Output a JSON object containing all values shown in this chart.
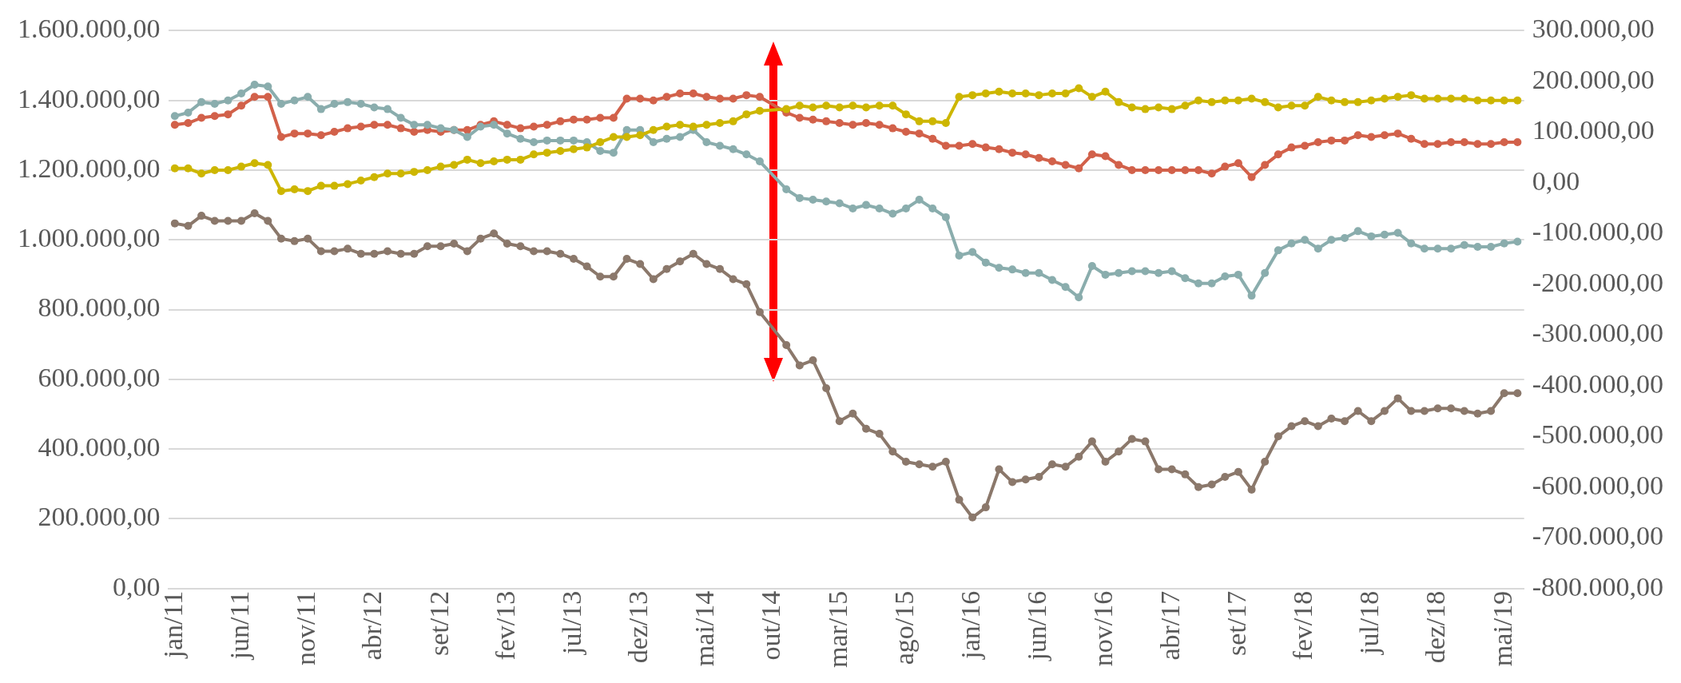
{
  "chart_data": {
    "type": "line",
    "categories": [
      "jan/11",
      null,
      null,
      null,
      null,
      "jun/11",
      null,
      null,
      null,
      null,
      "nov/11",
      null,
      null,
      null,
      null,
      "abr/12",
      null,
      null,
      null,
      null,
      "set/12",
      null,
      null,
      null,
      null,
      "fev/13",
      null,
      null,
      null,
      null,
      "jul/13",
      null,
      null,
      null,
      null,
      "dez/13",
      null,
      null,
      null,
      null,
      "mai/14",
      null,
      null,
      null,
      null,
      "out/14",
      null,
      null,
      null,
      null,
      "mar/15",
      null,
      null,
      null,
      null,
      "ago/15",
      null,
      null,
      null,
      null,
      "jan/16",
      null,
      null,
      null,
      null,
      "jun/16",
      null,
      null,
      null,
      null,
      "nov/16",
      null,
      null,
      null,
      null,
      "abr/17",
      null,
      null,
      null,
      null,
      "set/17",
      null,
      null,
      null,
      null,
      "fev/18",
      null,
      null,
      null,
      null,
      "jul/18",
      null,
      null,
      null,
      null,
      "dez/18",
      null,
      null,
      null,
      null,
      "mai/19",
      null
    ],
    "series": [
      {
        "color": "#d2614a",
        "values": [
          1330000,
          1335000,
          1350000,
          1355000,
          1360000,
          1385000,
          1410000,
          1410000,
          1295000,
          1305000,
          1305000,
          1300000,
          1310000,
          1320000,
          1325000,
          1330000,
          1330000,
          1320000,
          1310000,
          1315000,
          1310000,
          1315000,
          1315000,
          1330000,
          1340000,
          1330000,
          1320000,
          1325000,
          1330000,
          1340000,
          1345000,
          1345000,
          1350000,
          1350000,
          1405000,
          1405000,
          1400000,
          1410000,
          1420000,
          1420000,
          1410000,
          1405000,
          1405000,
          1415000,
          1410000,
          null,
          1365000,
          1350000,
          1345000,
          1340000,
          1335000,
          1330000,
          1335000,
          1330000,
          1320000,
          1310000,
          1305000,
          1290000,
          1270000,
          1270000,
          1275000,
          1265000,
          1260000,
          1250000,
          1245000,
          1235000,
          1225000,
          1215000,
          1205000,
          1245000,
          1240000,
          1215000,
          1200000,
          1200000,
          1200000,
          1200000,
          1200000,
          1200000,
          1190000,
          1210000,
          1220000,
          1180000,
          1215000,
          1245000,
          1265000,
          1270000,
          1280000,
          1285000,
          1285000,
          1300000,
          1295000,
          1300000,
          1305000,
          1290000,
          1275000,
          1275000,
          1280000,
          1280000,
          1275000,
          1275000,
          1280000,
          1280000
        ]
      },
      {
        "color": "#8aadad",
        "values": [
          1355000,
          1365000,
          1395000,
          1390000,
          1400000,
          1420000,
          1445000,
          1440000,
          1390000,
          1400000,
          1410000,
          1375000,
          1390000,
          1395000,
          1390000,
          1380000,
          1375000,
          1350000,
          1330000,
          1330000,
          1320000,
          1315000,
          1295000,
          1325000,
          1330000,
          1305000,
          1290000,
          1280000,
          1285000,
          1285000,
          1285000,
          1280000,
          1255000,
          1250000,
          1315000,
          1315000,
          1280000,
          1290000,
          1295000,
          1315000,
          1280000,
          1270000,
          1260000,
          1245000,
          1225000,
          null,
          1145000,
          1120000,
          1115000,
          1110000,
          1105000,
          1090000,
          1100000,
          1090000,
          1075000,
          1090000,
          1115000,
          1090000,
          1065000,
          955000,
          965000,
          935000,
          920000,
          915000,
          905000,
          905000,
          885000,
          865000,
          835000,
          925000,
          900000,
          905000,
          910000,
          910000,
          905000,
          910000,
          890000,
          875000,
          875000,
          895000,
          900000,
          840000,
          905000,
          970000,
          990000,
          1000000,
          975000,
          1000000,
          1005000,
          1025000,
          1010000,
          1015000,
          1020000,
          990000,
          975000,
          975000,
          975000,
          985000,
          980000,
          980000,
          990000,
          995000
        ]
      },
      {
        "color": "#cdb600",
        "values": [
          1205000,
          1205000,
          1190000,
          1200000,
          1200000,
          1210000,
          1220000,
          1215000,
          1140000,
          1145000,
          1140000,
          1155000,
          1155000,
          1160000,
          1170000,
          1180000,
          1190000,
          1190000,
          1195000,
          1200000,
          1210000,
          1215000,
          1230000,
          1220000,
          1225000,
          1230000,
          1230000,
          1245000,
          1250000,
          1255000,
          1260000,
          1265000,
          1280000,
          1295000,
          1295000,
          1300000,
          1315000,
          1325000,
          1330000,
          1325000,
          1330000,
          1335000,
          1340000,
          1360000,
          1370000,
          null,
          1375000,
          1385000,
          1380000,
          1385000,
          1380000,
          1385000,
          1380000,
          1385000,
          1385000,
          1360000,
          1340000,
          1340000,
          1335000,
          1410000,
          1415000,
          1420000,
          1425000,
          1420000,
          1420000,
          1415000,
          1420000,
          1420000,
          1435000,
          1410000,
          1425000,
          1395000,
          1380000,
          1375000,
          1380000,
          1375000,
          1385000,
          1400000,
          1395000,
          1400000,
          1400000,
          1405000,
          1395000,
          1380000,
          1385000,
          1385000,
          1410000,
          1400000,
          1395000,
          1395000,
          1400000,
          1405000,
          1410000,
          1415000,
          1405000,
          1405000,
          1405000,
          1405000,
          1400000,
          1400000,
          1400000,
          1400000
        ]
      },
      {
        "color": "#8b786b",
        "axis": "y2",
        "values": [
          -80000,
          -85000,
          -65000,
          -75000,
          -75000,
          -75000,
          -60000,
          -75000,
          -110000,
          -115000,
          -110000,
          -135000,
          -135000,
          -130000,
          -140000,
          -140000,
          -135000,
          -140000,
          -140000,
          -125000,
          -125000,
          -120000,
          -135000,
          -110000,
          -100000,
          -120000,
          -125000,
          -135000,
          -135000,
          -140000,
          -150000,
          -165000,
          -185000,
          -185000,
          -150000,
          -160000,
          -190000,
          -170000,
          -155000,
          -140000,
          -160000,
          -170000,
          -190000,
          -200000,
          -255000,
          null,
          -320000,
          -360000,
          -350000,
          -405000,
          -470000,
          -455000,
          -485000,
          -495000,
          -530000,
          -550000,
          -555000,
          -560000,
          -550000,
          -625000,
          -660000,
          -640000,
          -565000,
          -590000,
          -585000,
          -580000,
          -555000,
          -560000,
          -540000,
          -510000,
          -550000,
          -530000,
          -505000,
          -510000,
          -565000,
          -565000,
          -575000,
          -600000,
          -595000,
          -580000,
          -570000,
          -605000,
          -550000,
          -500000,
          -480000,
          -470000,
          -480000,
          -465000,
          -470000,
          -450000,
          -470000,
          -450000,
          -425000,
          -450000,
          -450000,
          -445000,
          -445000,
          -450000,
          -455000,
          -450000,
          -415000,
          -415000
        ]
      }
    ],
    "ylim": [
      0,
      1600000
    ],
    "yticks": [
      {
        "value": 0,
        "label": "0,00"
      },
      {
        "value": 200000,
        "label": "200.000,00"
      },
      {
        "value": 400000,
        "label": "400.000,00"
      },
      {
        "value": 600000,
        "label": "600.000,00"
      },
      {
        "value": 800000,
        "label": "800.000,00"
      },
      {
        "value": 1000000,
        "label": "1.000.000,00"
      },
      {
        "value": 1200000,
        "label": "1.200.000,00"
      },
      {
        "value": 1400000,
        "label": "1.400.000,00"
      },
      {
        "value": 1600000,
        "label": "1.600.000,00"
      }
    ],
    "y2lim": [
      -800000,
      300000
    ],
    "y2ticks": [
      {
        "value": -800000,
        "label": "-800.000,00"
      },
      {
        "value": -700000,
        "label": "-700.000,00"
      },
      {
        "value": -600000,
        "label": "-600.000,00"
      },
      {
        "value": -500000,
        "label": "-500.000,00"
      },
      {
        "value": -400000,
        "label": "-400.000,00"
      },
      {
        "value": -300000,
        "label": "-300.000,00"
      },
      {
        "value": -200000,
        "label": "-200.000,00"
      },
      {
        "value": -100000,
        "label": "-100.000,00"
      },
      {
        "value": 0,
        "label": "0,00"
      },
      {
        "value": 100000,
        "label": "100.000,00"
      },
      {
        "value": 200000,
        "label": "200.000,00"
      },
      {
        "value": 300000,
        "label": "300.000,00"
      }
    ],
    "grid": "y",
    "legend": false,
    "marker": "circle",
    "line_style": "solid"
  }
}
